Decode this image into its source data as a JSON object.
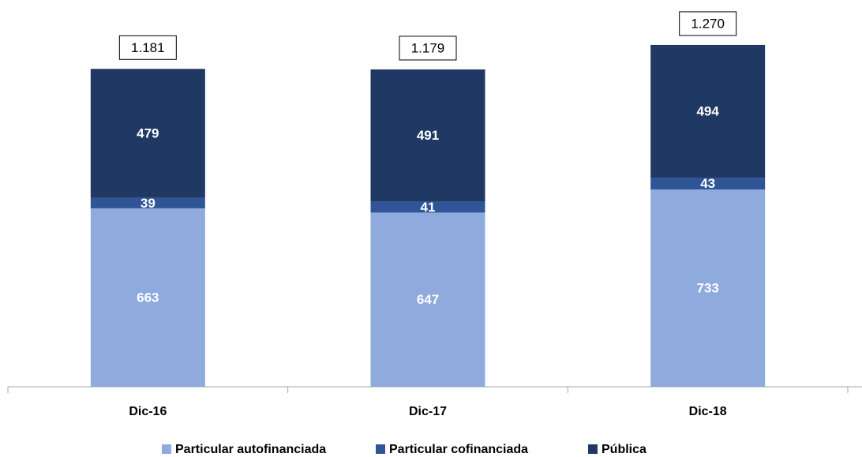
{
  "chart_data": {
    "type": "stacked_bar",
    "categories": [
      "Dic-16",
      "Dic-17",
      "Dic-18"
    ],
    "series": [
      {
        "name": "Particular autofinanciada",
        "color": "#8faadc",
        "values": [
          663,
          647,
          733
        ]
      },
      {
        "name": "Particular cofinanciada",
        "color": "#2f5597",
        "values": [
          39,
          41,
          43
        ]
      },
      {
        "name": "Pública",
        "color": "#203864",
        "values": [
          479,
          491,
          494
        ]
      }
    ],
    "totals": {
      "values": [
        1181,
        1179,
        1270
      ],
      "value_labels": [
        "1.181",
        "1.179",
        "1.270"
      ]
    },
    "ylim": [
      0,
      1400
    ],
    "legend": "bottom"
  }
}
